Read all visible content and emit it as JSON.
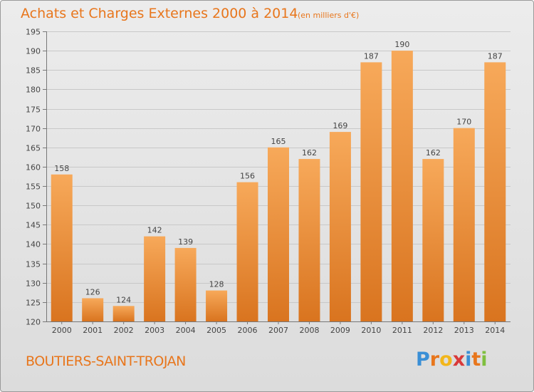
{
  "title": "Achats et Charges Externes 2000 à 2014",
  "subtitle": "(en milliers d'€)",
  "place": "BOUTIERS-SAINT-TROJAN",
  "logo": {
    "text": "Proxiti",
    "letter_colors": [
      "#3a8fd6",
      "#e8761c",
      "#f2b61b",
      "#d93a3a",
      "#3a8fd6",
      "#e8761c",
      "#7fbf3f"
    ]
  },
  "colors": {
    "accent": "#e8761c",
    "bar_light": "#f7a95a",
    "bar_dark": "#d9741f"
  },
  "chart_data": {
    "type": "bar",
    "title": "Achats et Charges Externes 2000 à 2014",
    "subtitle": "(en milliers d'€)",
    "xlabel": "",
    "ylabel": "",
    "categories": [
      "2000",
      "2001",
      "2002",
      "2003",
      "2004",
      "2005",
      "2006",
      "2007",
      "2008",
      "2009",
      "2010",
      "2011",
      "2012",
      "2013",
      "2014"
    ],
    "values": [
      158,
      126,
      124,
      142,
      139,
      128,
      156,
      165,
      162,
      169,
      187,
      190,
      162,
      170,
      187
    ],
    "ylim": [
      120,
      195
    ],
    "yticks": [
      120,
      125,
      130,
      135,
      140,
      145,
      150,
      155,
      160,
      165,
      170,
      175,
      180,
      185,
      190,
      195
    ],
    "grid": true,
    "legend": "none"
  }
}
